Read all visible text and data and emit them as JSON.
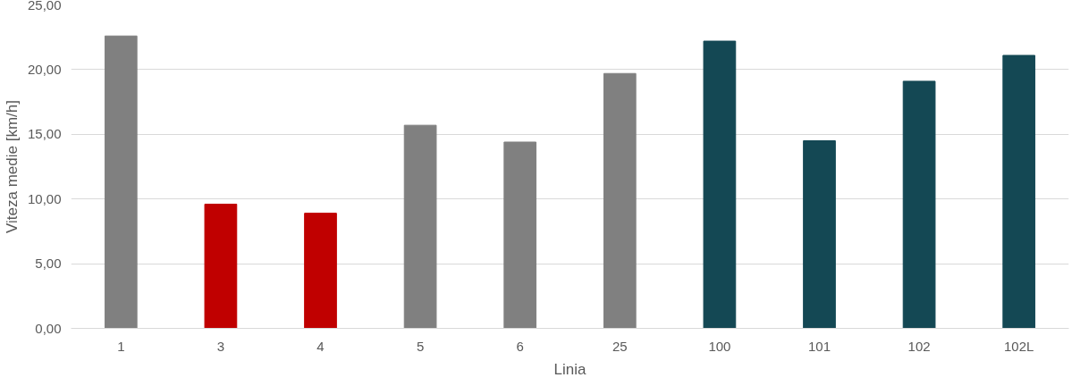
{
  "chart_data": {
    "type": "bar",
    "xlabel": "Linia",
    "ylabel": "Viteza medie [km/h]",
    "categories": [
      "1",
      "3",
      "4",
      "5",
      "6",
      "25",
      "100",
      "101",
      "102",
      "102L"
    ],
    "values": [
      22.6,
      9.6,
      8.9,
      15.7,
      14.4,
      19.7,
      22.2,
      14.5,
      19.1,
      21.1
    ],
    "colors": [
      "#808080",
      "#c00000",
      "#c00000",
      "#808080",
      "#808080",
      "#808080",
      "#144854",
      "#144854",
      "#144854",
      "#144854"
    ],
    "ylim": [
      0,
      25
    ],
    "yticks": [
      {
        "value": 0,
        "label": "0,00"
      },
      {
        "value": 5,
        "label": "5,00"
      },
      {
        "value": 10,
        "label": "10,00"
      },
      {
        "value": 15,
        "label": "15,00"
      },
      {
        "value": 20,
        "label": "20,00"
      },
      {
        "value": 25,
        "label": "25,00"
      }
    ],
    "grid": "y"
  }
}
